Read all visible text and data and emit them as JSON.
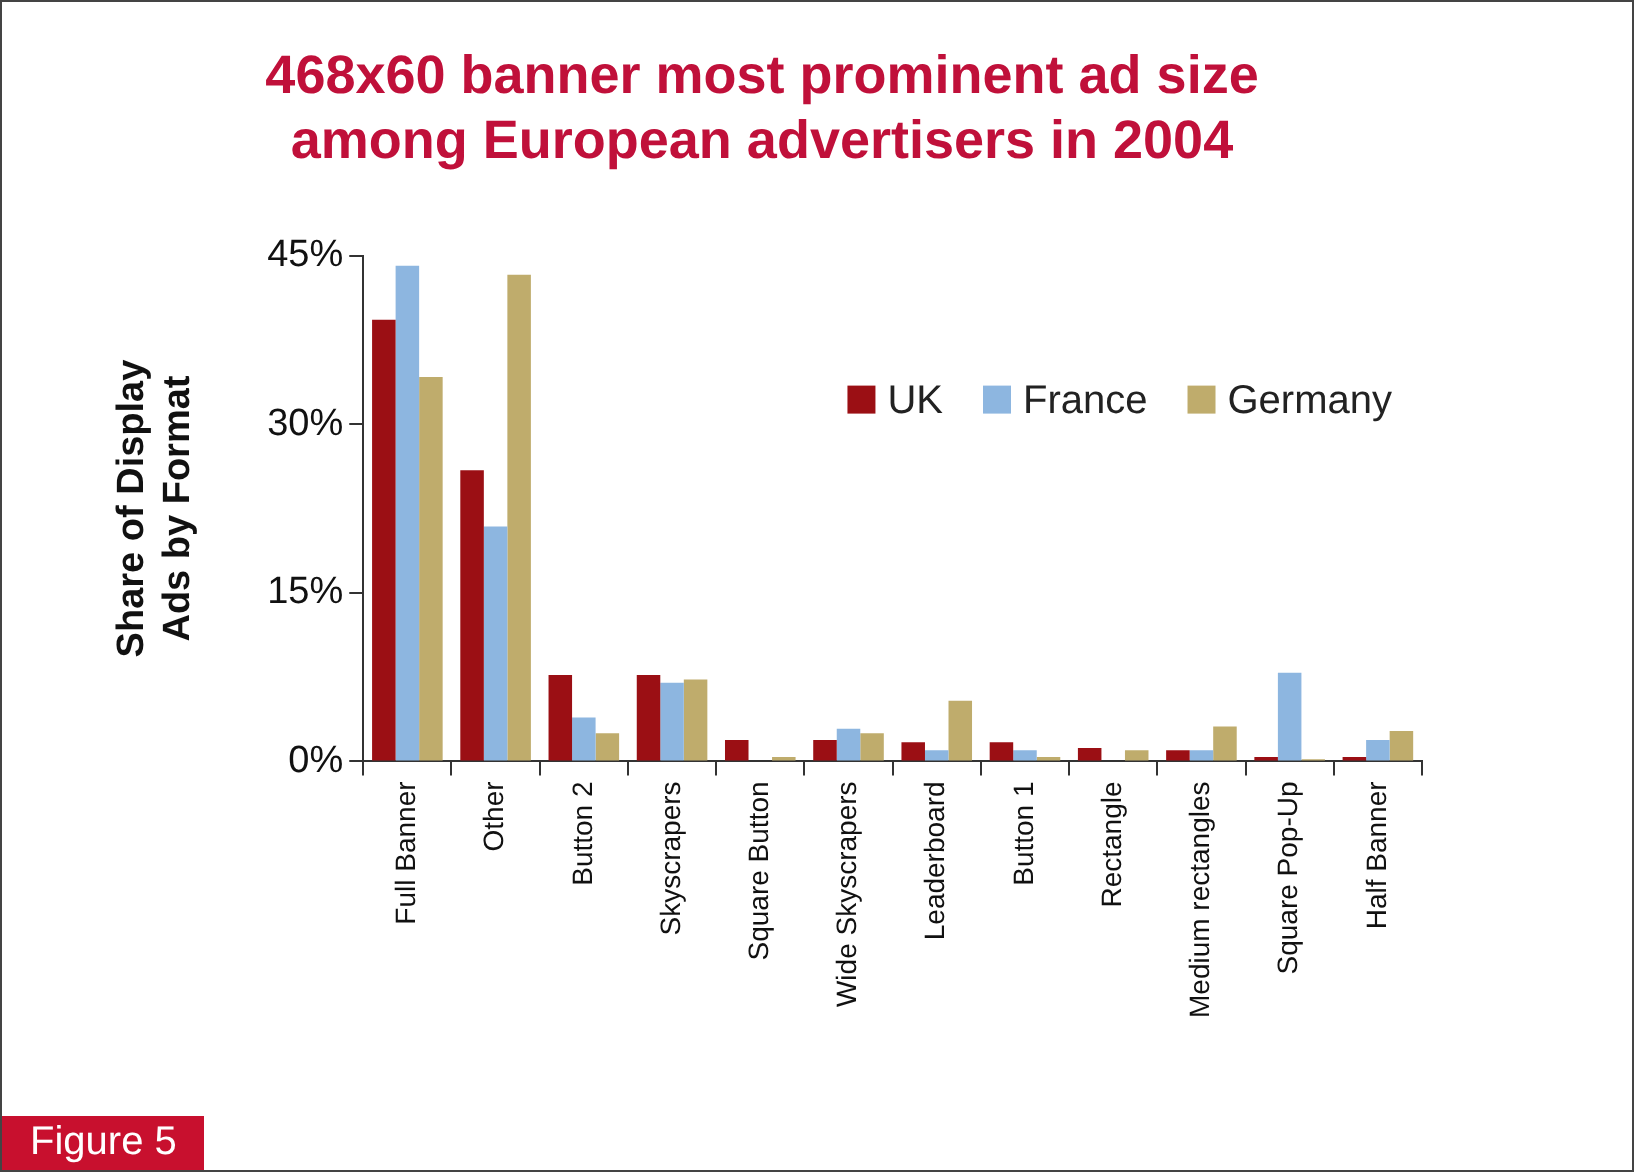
{
  "chart_data": {
    "type": "bar",
    "title": "468x60 banner most prominent ad size among European advertisers in 2004",
    "ylabel": "Share of Display Ads by Format",
    "categories": [
      "Full Banner",
      "Other",
      "Button 2",
      "Skyscrapers",
      "Square Button",
      "Wide Skyscrapers",
      "Leaderboard",
      "Button 1",
      "Rectangle",
      "Medium rectangles",
      "Square Pop-Up",
      "Half Banner"
    ],
    "series": [
      {
        "name": "UK",
        "color": "#9b0f14",
        "values": [
          39.3,
          25.9,
          7.7,
          7.7,
          1.9,
          1.9,
          1.7,
          1.7,
          1.2,
          1.0,
          0.4,
          0.4
        ]
      },
      {
        "name": "France",
        "color": "#8db6e0",
        "values": [
          44.1,
          20.9,
          3.9,
          7.0,
          0,
          2.9,
          1.0,
          1.0,
          0,
          1.0,
          7.9,
          1.9
        ]
      },
      {
        "name": "Germany",
        "color": "#bfac6c",
        "values": [
          34.2,
          43.3,
          2.5,
          7.3,
          0.4,
          2.5,
          5.4,
          0.4,
          1.0,
          3.1,
          0.2,
          2.7
        ]
      }
    ],
    "ylim": [
      0,
      45
    ],
    "yticks": [
      {
        "value": 0,
        "label": "0%"
      },
      {
        "value": 15,
        "label": "15%"
      },
      {
        "value": 30,
        "label": "30%"
      },
      {
        "value": 45,
        "label": "45%"
      }
    ],
    "grid": false,
    "legend": "top right",
    "annotations": [
      "Figure 5"
    ]
  }
}
